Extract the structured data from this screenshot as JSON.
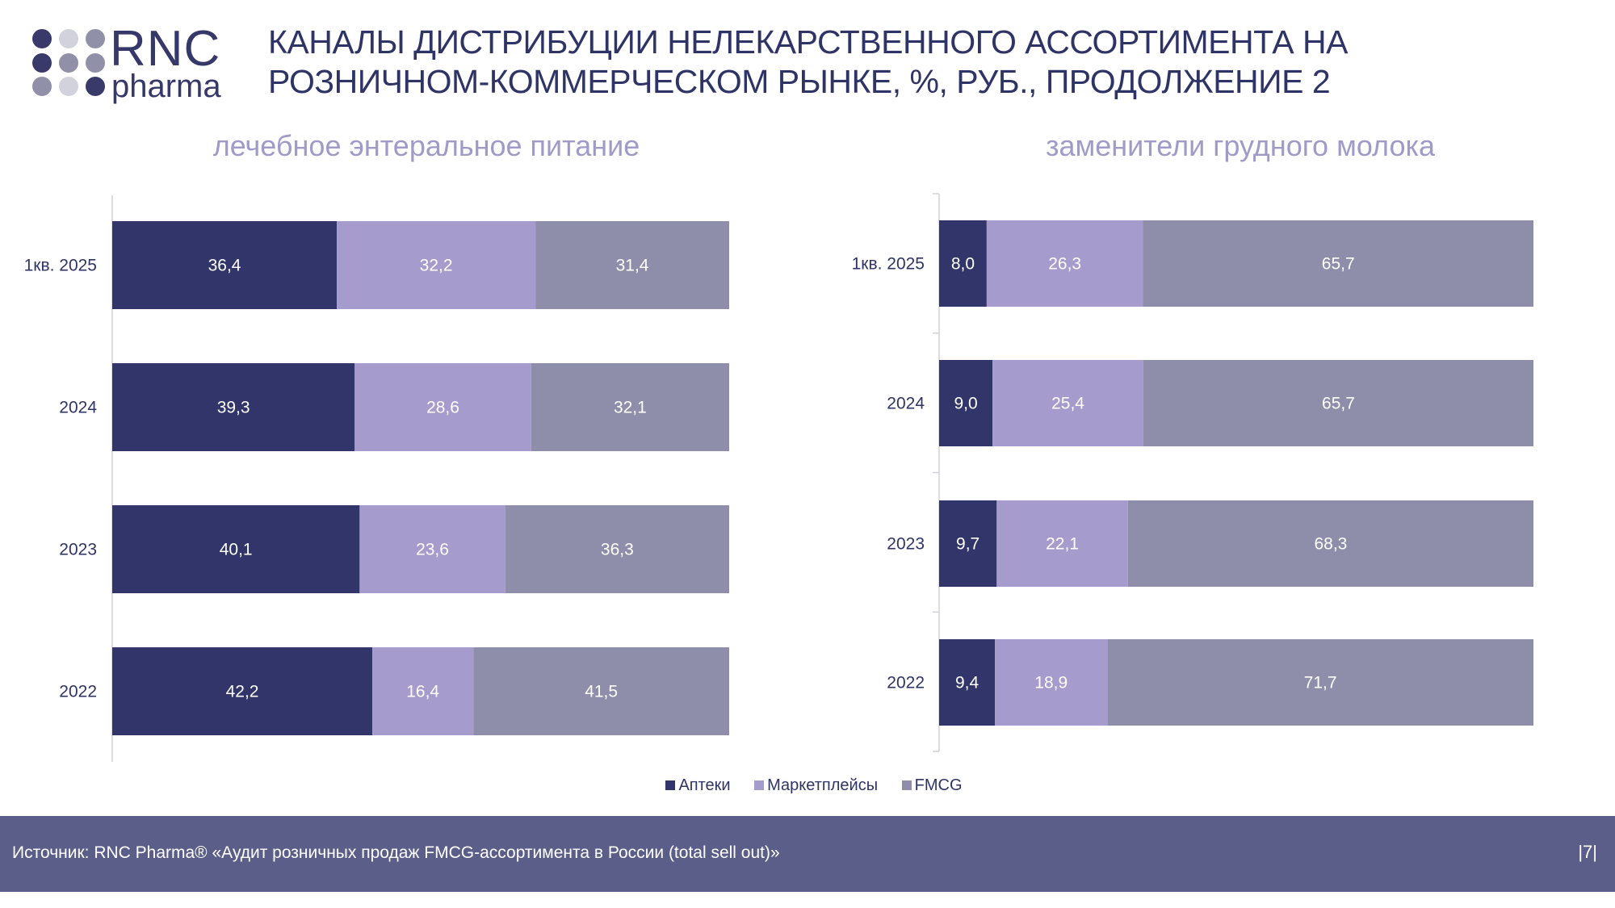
{
  "header": {
    "logo_text": "RNC pharma",
    "title_lines": [
      "КАНАЛЫ ДИСТРИБУЦИИ НЕЛЕКАРСТВЕННОГО АССОРТИМЕНТА НА",
      "РОЗНИЧНОМ-КОММЕРЧЕСКОМ РЫНКЕ, %, РУБ., ПРОДОЛЖЕНИЕ 2"
    ]
  },
  "colors": {
    "Аптеки": "#31356a",
    "Маркетплейсы": "#a59bcc",
    "FMCG": "#8e8eaa"
  },
  "legend": [
    "Аптеки",
    "Маркетплейсы",
    "FMCG"
  ],
  "chart_data": [
    {
      "type": "bar",
      "orientation": "horizontal",
      "stacked": true,
      "title": "лечебное энтеральное питание",
      "categories": [
        "1кв. 2025",
        "2024",
        "2023",
        "2022"
      ],
      "series": [
        {
          "name": "Аптеки",
          "values": [
            "36,4",
            "39,3",
            "40,1",
            "42,2"
          ]
        },
        {
          "name": "Маркетплейсы",
          "values": [
            "32,2",
            "28,6",
            "23,6",
            "16,4"
          ]
        },
        {
          "name": "FMCG",
          "values": [
            "31,4",
            "32,1",
            "36,3",
            "41,5"
          ]
        }
      ],
      "xlim": [
        0,
        100
      ],
      "legend_position": "bottom"
    },
    {
      "type": "bar",
      "orientation": "horizontal",
      "stacked": true,
      "title": "заменители грудного молока",
      "categories": [
        "1кв. 2025",
        "2024",
        "2023",
        "2022"
      ],
      "series": [
        {
          "name": "Аптеки",
          "values": [
            "8,0",
            "9,0",
            "9,7",
            "9,4"
          ]
        },
        {
          "name": "Маркетплейсы",
          "values": [
            "26,3",
            "25,4",
            "22,1",
            "18,9"
          ]
        },
        {
          "name": "FMCG",
          "values": [
            "65,7",
            "65,7",
            "68,3",
            "71,7"
          ]
        }
      ],
      "xlim": [
        0,
        100
      ],
      "legend_position": "bottom"
    }
  ],
  "footer": {
    "source": "Источник: RNC Pharma® «Аудит розничных продаж FMCG-ассортимента в России (total sell out)»",
    "page": "|7|"
  }
}
